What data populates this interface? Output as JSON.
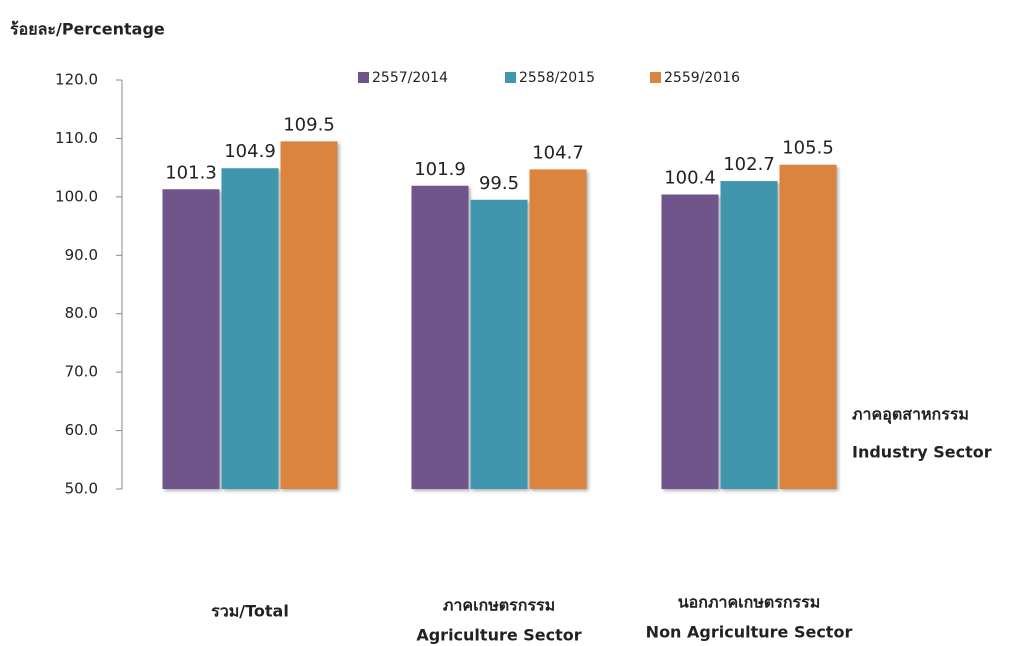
{
  "chart_data": {
    "type": "bar",
    "y_label": "ร้อยละ/Percentage",
    "categories": [
      [
        "รวม/Total"
      ],
      [
        "ภาคเกษตรกรรม",
        "Agriculture Sector"
      ],
      [
        "นอกภาคเกษตรกรรม",
        "Non Agriculture Sector"
      ]
    ],
    "series": [
      {
        "name": "2557/2014",
        "color": "#6f548c",
        "values": [
          101.3,
          101.9,
          100.4
        ]
      },
      {
        "name": "2558/2015",
        "color": "#3f97ad",
        "values": [
          104.9,
          99.5,
          102.7
        ]
      },
      {
        "name": "2559/2016",
        "color": "#db8440",
        "values": [
          109.5,
          104.7,
          105.5
        ]
      }
    ],
    "ylim": [
      50,
      120
    ],
    "yticks": [
      {
        "value": 50,
        "label": "50.0"
      },
      {
        "value": 60,
        "label": "60.0"
      },
      {
        "value": 70,
        "label": "70.0"
      },
      {
        "value": 80,
        "label": "80.0"
      },
      {
        "value": 90,
        "label": "90.0"
      },
      {
        "value": 100,
        "label": "100.0"
      },
      {
        "value": 110,
        "label": "110.0"
      },
      {
        "value": 120,
        "label": "120.0"
      }
    ],
    "grid": false,
    "annotation": [
      "ภาคอุตสาหกรรม",
      "Industry Sector"
    ]
  }
}
